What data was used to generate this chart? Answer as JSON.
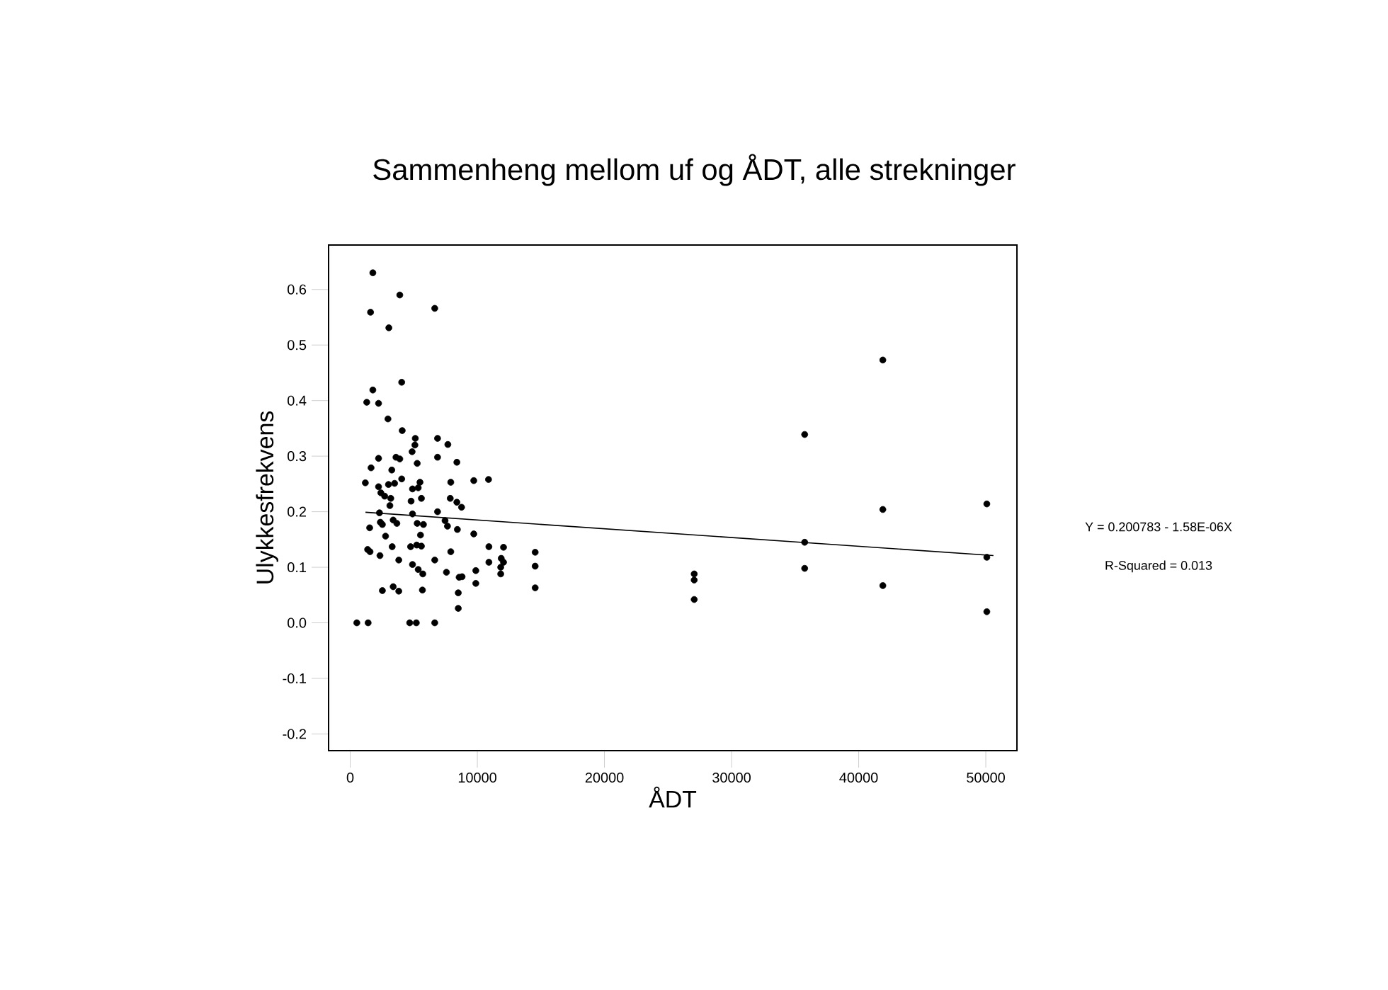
{
  "chart_data": {
    "type": "scatter",
    "title": "Sammenheng mellom uf og ÅDT, alle strekninger",
    "xlabel": "ÅDT",
    "ylabel": "Ulykkesfrekvens",
    "annotations": [
      "Y = 0.200783 - 1.58E-06X",
      "R-Squared = 0.013"
    ],
    "xlim": [
      -1700,
      52450
    ],
    "ylim": [
      -0.23,
      0.68
    ],
    "xticks": [
      0,
      10000,
      20000,
      30000,
      40000,
      50000
    ],
    "yticks": [
      {
        "value": -0.2,
        "label": "-0.2"
      },
      {
        "value": -0.1,
        "label": "-0.1"
      },
      {
        "value": 0,
        "label": "0.0"
      },
      {
        "value": 0.1,
        "label": "0.1"
      },
      {
        "value": 0.2,
        "label": "0.2"
      },
      {
        "value": 0.3,
        "label": "0.3"
      },
      {
        "value": 0.4,
        "label": "0.4"
      },
      {
        "value": 0.5,
        "label": "0.5"
      },
      {
        "value": 0.6,
        "label": "0.6"
      }
    ],
    "grid": false,
    "series": [
      {
        "color": "#000000",
        "marker": "circle",
        "x": [
          14550,
          14550,
          14550,
          27060,
          27060,
          27060,
          35750,
          35750,
          35750,
          41900,
          41900,
          41900,
          50080,
          50080,
          50080,
          1780,
          3900,
          1600,
          6650,
          3040,
          4050,
          1780,
          1300,
          2230,
          2970,
          4090,
          5120,
          6870,
          7680,
          5090,
          4870,
          2230,
          3600,
          3900,
          6870,
          5270,
          8390,
          1640,
          3270,
          1190,
          2230,
          3010,
          3490,
          4050,
          5490,
          7910,
          9720,
          10880,
          2410,
          2710,
          3190,
          4900,
          5350,
          4790,
          5600,
          7870,
          8390,
          8760,
          3120,
          2300,
          4900,
          6870,
          2370,
          2530,
          3380,
          3670,
          5270,
          5760,
          7460,
          7650,
          8430,
          1530,
          2780,
          5530,
          9720,
          3300,
          4750,
          5230,
          5600,
          1370,
          1560,
          2340,
          7910,
          10910,
          12060,
          3820,
          6650,
          10910,
          11880,
          12060,
          11840,
          4900,
          5350,
          5710,
          7570,
          8570,
          8800,
          9880,
          9880,
          11840,
          2530,
          3380,
          3820,
          5680,
          8500,
          8500,
          520,
          1410,
          4680,
          5200,
          6650
        ],
        "values": [
          0.127,
          0.102,
          0.063,
          0.088,
          0.077,
          0.042,
          0.339,
          0.145,
          0.098,
          0.473,
          0.204,
          0.067,
          0.214,
          0.118,
          0.02,
          0.63,
          0.59,
          0.559,
          0.566,
          0.531,
          0.433,
          0.419,
          0.397,
          0.395,
          0.367,
          0.346,
          0.332,
          0.332,
          0.321,
          0.32,
          0.308,
          0.296,
          0.298,
          0.295,
          0.298,
          0.287,
          0.289,
          0.279,
          0.275,
          0.252,
          0.245,
          0.249,
          0.251,
          0.259,
          0.253,
          0.253,
          0.256,
          0.258,
          0.234,
          0.228,
          0.224,
          0.241,
          0.243,
          0.219,
          0.224,
          0.224,
          0.217,
          0.208,
          0.211,
          0.198,
          0.196,
          0.2,
          0.181,
          0.177,
          0.185,
          0.179,
          0.179,
          0.177,
          0.184,
          0.174,
          0.168,
          0.171,
          0.156,
          0.158,
          0.16,
          0.137,
          0.137,
          0.14,
          0.138,
          0.132,
          0.128,
          0.121,
          0.128,
          0.137,
          0.136,
          0.113,
          0.113,
          0.109,
          0.116,
          0.109,
          0.1,
          0.105,
          0.096,
          0.088,
          0.091,
          0.082,
          0.083,
          0.094,
          0.071,
          0.088,
          0.058,
          0.065,
          0.057,
          0.059,
          0.054,
          0.026,
          0,
          0,
          0,
          0,
          0
        ]
      },
      {
        "type": "line",
        "color": "#000000",
        "marker": "none",
        "x": [
          1200,
          50600
        ],
        "values": [
          0.199,
          0.121
        ]
      }
    ]
  }
}
